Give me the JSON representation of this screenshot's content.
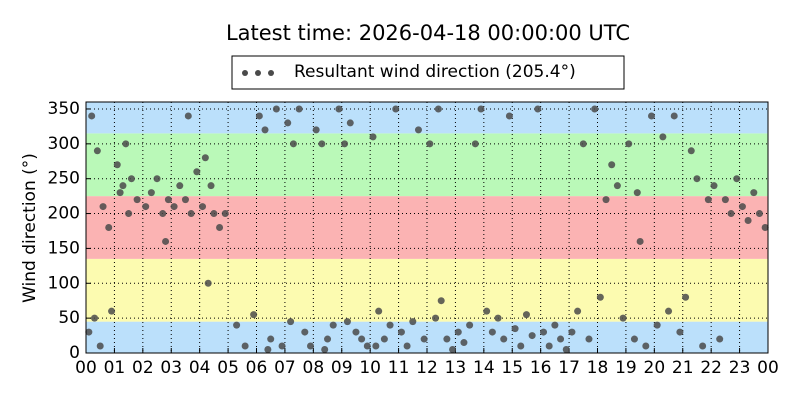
{
  "chart_data": {
    "type": "scatter",
    "title": "Latest time: 2026-04-18 00:00:00 UTC",
    "y_label": "Wind direction (°)",
    "xlim": [
      0,
      24
    ],
    "ylim": [
      0,
      360
    ],
    "xticks": [
      {
        "value": 0,
        "label": "00"
      },
      {
        "value": 1,
        "label": "01"
      },
      {
        "value": 2,
        "label": "02"
      },
      {
        "value": 3,
        "label": "03"
      },
      {
        "value": 4,
        "label": "04"
      },
      {
        "value": 5,
        "label": "05"
      },
      {
        "value": 6,
        "label": "06"
      },
      {
        "value": 7,
        "label": "07"
      },
      {
        "value": 8,
        "label": "08"
      },
      {
        "value": 9,
        "label": "09"
      },
      {
        "value": 10,
        "label": "10"
      },
      {
        "value": 11,
        "label": "11"
      },
      {
        "value": 12,
        "label": "12"
      },
      {
        "value": 13,
        "label": "13"
      },
      {
        "value": 14,
        "label": "14"
      },
      {
        "value": 15,
        "label": "15"
      },
      {
        "value": 16,
        "label": "16"
      },
      {
        "value": 17,
        "label": "17"
      },
      {
        "value": 18,
        "label": "18"
      },
      {
        "value": 19,
        "label": "19"
      },
      {
        "value": 20,
        "label": "20"
      },
      {
        "value": 21,
        "label": "21"
      },
      {
        "value": 22,
        "label": "22"
      },
      {
        "value": 23,
        "label": "23"
      },
      {
        "value": 24,
        "label": "00"
      }
    ],
    "yticks": [
      0,
      50,
      100,
      150,
      200,
      250,
      300,
      350
    ],
    "grid": true,
    "bands": [
      {
        "from": 0,
        "to": 45,
        "color": "#bbe0fb"
      },
      {
        "from": 45,
        "to": 135,
        "color": "#fcfbb0"
      },
      {
        "from": 135,
        "to": 225,
        "color": "#fbb3b3"
      },
      {
        "from": 225,
        "to": 315,
        "color": "#baf9b8"
      },
      {
        "from": 315,
        "to": 360,
        "color": "#bbe0fb"
      }
    ],
    "series": [
      {
        "name": "Resultant wind direction (205.4°)",
        "color": "#4a4a4a",
        "x": [
          0.1,
          0.3,
          0.5,
          0.2,
          0.4,
          0.6,
          0.8,
          0.9,
          1.1,
          1.2,
          1.3,
          1.5,
          1.6,
          1.8,
          1.4,
          2.1,
          2.3,
          2.5,
          2.7,
          2.8,
          2.9,
          3.1,
          3.3,
          3.5,
          3.7,
          3.9,
          3.6,
          4.1,
          4.2,
          4.3,
          4.5,
          4.7,
          4.9,
          4.4,
          5.3,
          5.6,
          5.9,
          6.1,
          6.3,
          6.5,
          6.7,
          6.9,
          6.4,
          7.1,
          7.3,
          7.5,
          7.7,
          7.9,
          7.2,
          8.1,
          8.3,
          8.5,
          8.7,
          8.9,
          8.4,
          9.1,
          9.3,
          9.5,
          9.7,
          9.9,
          9.2,
          10.1,
          10.3,
          10.5,
          10.7,
          10.9,
          10.2,
          11.1,
          11.3,
          11.5,
          11.7,
          11.9,
          12.1,
          12.3,
          12.5,
          12.7,
          12.9,
          12.4,
          13.1,
          13.3,
          13.5,
          13.7,
          13.9,
          14.1,
          14.3,
          14.5,
          14.7,
          14.9,
          15.1,
          15.3,
          15.5,
          15.7,
          15.9,
          16.1,
          16.3,
          16.5,
          16.7,
          16.9,
          17.1,
          17.3,
          17.5,
          17.7,
          17.9,
          18.1,
          18.3,
          18.5,
          18.7,
          18.9,
          19.1,
          19.3,
          19.5,
          19.7,
          19.9,
          19.4,
          20.1,
          20.3,
          20.5,
          20.7,
          20.9,
          21.1,
          21.3,
          21.5,
          21.7,
          21.9,
          22.1,
          22.3,
          22.5,
          22.7,
          22.9,
          23.1,
          23.3,
          23.5,
          23.7,
          23.9
        ],
        "values": [
          30,
          50,
          10,
          340,
          290,
          210,
          180,
          60,
          270,
          230,
          240,
          200,
          250,
          220,
          300,
          210,
          230,
          250,
          200,
          160,
          220,
          210,
          240,
          220,
          200,
          260,
          340,
          210,
          280,
          100,
          200,
          180,
          200,
          240,
          40,
          10,
          55,
          340,
          320,
          20,
          350,
          10,
          5,
          330,
          300,
          350,
          30,
          10,
          45,
          320,
          300,
          20,
          40,
          350,
          5,
          300,
          330,
          30,
          20,
          10,
          45,
          310,
          60,
          20,
          40,
          350,
          10,
          30,
          10,
          45,
          320,
          20,
          300,
          50,
          75,
          20,
          5,
          350,
          30,
          15,
          40,
          300,
          350,
          60,
          30,
          50,
          20,
          340,
          35,
          10,
          55,
          25,
          350,
          30,
          10,
          40,
          20,
          5,
          30,
          60,
          300,
          20,
          350,
          80,
          220,
          270,
          240,
          50,
          300,
          20,
          160,
          10,
          340,
          230,
          40,
          310,
          60,
          340,
          30,
          80,
          290,
          250,
          10,
          220,
          240,
          20,
          220,
          200,
          250,
          210,
          190,
          230,
          200,
          180
        ]
      }
    ]
  }
}
